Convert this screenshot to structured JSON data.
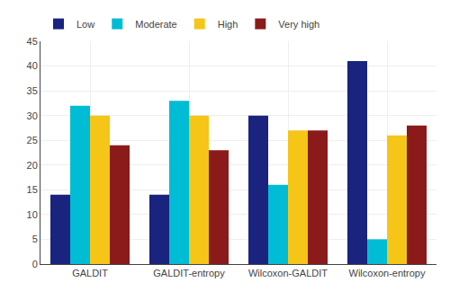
{
  "chart_data": {
    "type": "bar",
    "categories": [
      "GALDIT",
      "GALDIT-entropy",
      "Wilcoxon-GALDIT",
      "Wilcoxon-entropy"
    ],
    "series": [
      {
        "name": "Low",
        "color": "#1a237e",
        "values": [
          14,
          14,
          30,
          41
        ]
      },
      {
        "name": "Moderate",
        "color": "#00bcd4",
        "values": [
          32,
          33,
          16,
          5
        ]
      },
      {
        "name": "High",
        "color": "#f5c518",
        "values": [
          30,
          30,
          27,
          26
        ]
      },
      {
        "name": "Very high",
        "color": "#8b1a1a",
        "values": [
          24,
          23,
          27,
          28
        ]
      }
    ],
    "ylim": [
      0,
      45
    ],
    "yticks": [
      0,
      5,
      10,
      15,
      20,
      25,
      30,
      35,
      40,
      45
    ],
    "grid": true,
    "legend": "upper left"
  }
}
